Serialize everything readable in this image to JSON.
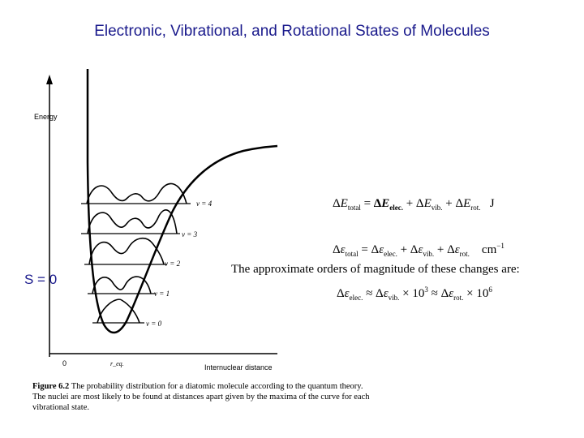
{
  "title": "Electronic, Vibrational, and Rotational States of Molecules",
  "diagram": {
    "y_axis_label": "Energy",
    "x_axis_label": "Internuclear distance",
    "origin_label": "0",
    "re_label": "r_eq.",
    "levels": [
      "v = 4",
      "v = 3",
      "v = 2",
      "v = 1",
      "v = 0"
    ]
  },
  "caption": {
    "figure": "Figure 6.2",
    "text": "The probability distribution for a diatomic molecule according to the quantum theory. The nuclei are most likely to be found at distances apart given by the maxima of the curve for each vibrational state."
  },
  "state_label": "S = 0",
  "equations": {
    "total_energy_unit": "J",
    "wavenumber_unit": "cm",
    "wavenumber_exp": "−1",
    "approx_text": "The approximate orders of magnitude of these changes are:",
    "factor1": "10",
    "exp1": "3",
    "factor2": "10",
    "exp2": "6"
  }
}
